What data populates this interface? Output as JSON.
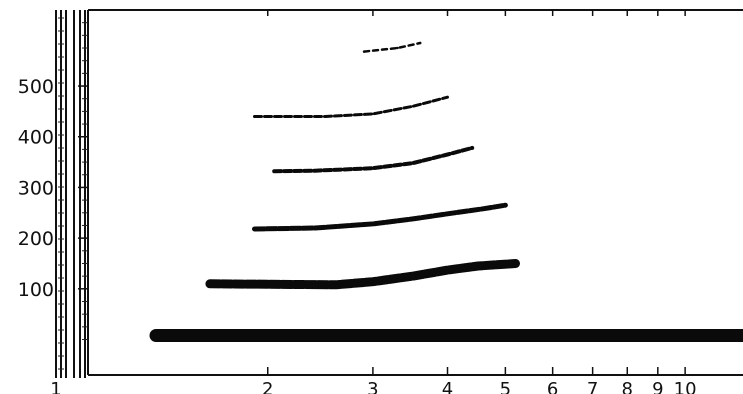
{
  "chart_data": {
    "type": "scatter",
    "title": "",
    "xlabel": "",
    "ylabel": "",
    "x_scale": "log",
    "x_ticks": [
      {
        "value": 1,
        "label": "1"
      },
      {
        "value": 2,
        "label": "2"
      },
      {
        "value": 3,
        "label": "3"
      },
      {
        "value": 4,
        "label": "4"
      },
      {
        "value": 5,
        "label": "5"
      },
      {
        "value": 6,
        "label": "6"
      },
      {
        "value": 7,
        "label": "7"
      },
      {
        "value": 8,
        "label": "8"
      },
      {
        "value": 9,
        "label": "9"
      },
      {
        "value": 10,
        "label": "10"
      }
    ],
    "y_ticks": [
      {
        "value": 100,
        "label": "100"
      },
      {
        "value": 200,
        "label": "200"
      },
      {
        "value": 300,
        "label": "300"
      },
      {
        "value": 400,
        "label": "400"
      },
      {
        "value": 500,
        "label": "500"
      }
    ],
    "xlim": [
      1,
      12.5
    ],
    "ylim": [
      -70,
      650
    ],
    "grid": false,
    "series": [
      {
        "values": [
          [
            1.3,
            8
          ],
          [
            12.5,
            8
          ]
        ]
      },
      {
        "values": [
          [
            1.6,
            110
          ],
          [
            2.6,
            108
          ],
          [
            3.0,
            114
          ],
          [
            3.5,
            125
          ],
          [
            4.0,
            137
          ],
          [
            4.5,
            145
          ],
          [
            5.2,
            150
          ]
        ]
      },
      {
        "values": [
          [
            1.9,
            218
          ],
          [
            2.4,
            220
          ],
          [
            3.0,
            228
          ],
          [
            3.5,
            238
          ],
          [
            4.0,
            248
          ],
          [
            4.6,
            258
          ],
          [
            5.0,
            265
          ]
        ]
      },
      {
        "values": [
          [
            2.05,
            332
          ],
          [
            2.4,
            333
          ],
          [
            3.0,
            338
          ],
          [
            3.5,
            348
          ],
          [
            4.0,
            365
          ],
          [
            4.4,
            378
          ]
        ]
      },
      {
        "values": [
          [
            1.9,
            440
          ],
          [
            2.5,
            440
          ],
          [
            3.0,
            445
          ],
          [
            3.5,
            460
          ],
          [
            4.0,
            478
          ]
        ]
      },
      {
        "values": [
          [
            2.9,
            568
          ],
          [
            3.3,
            575
          ],
          [
            3.6,
            585
          ]
        ]
      }
    ]
  }
}
